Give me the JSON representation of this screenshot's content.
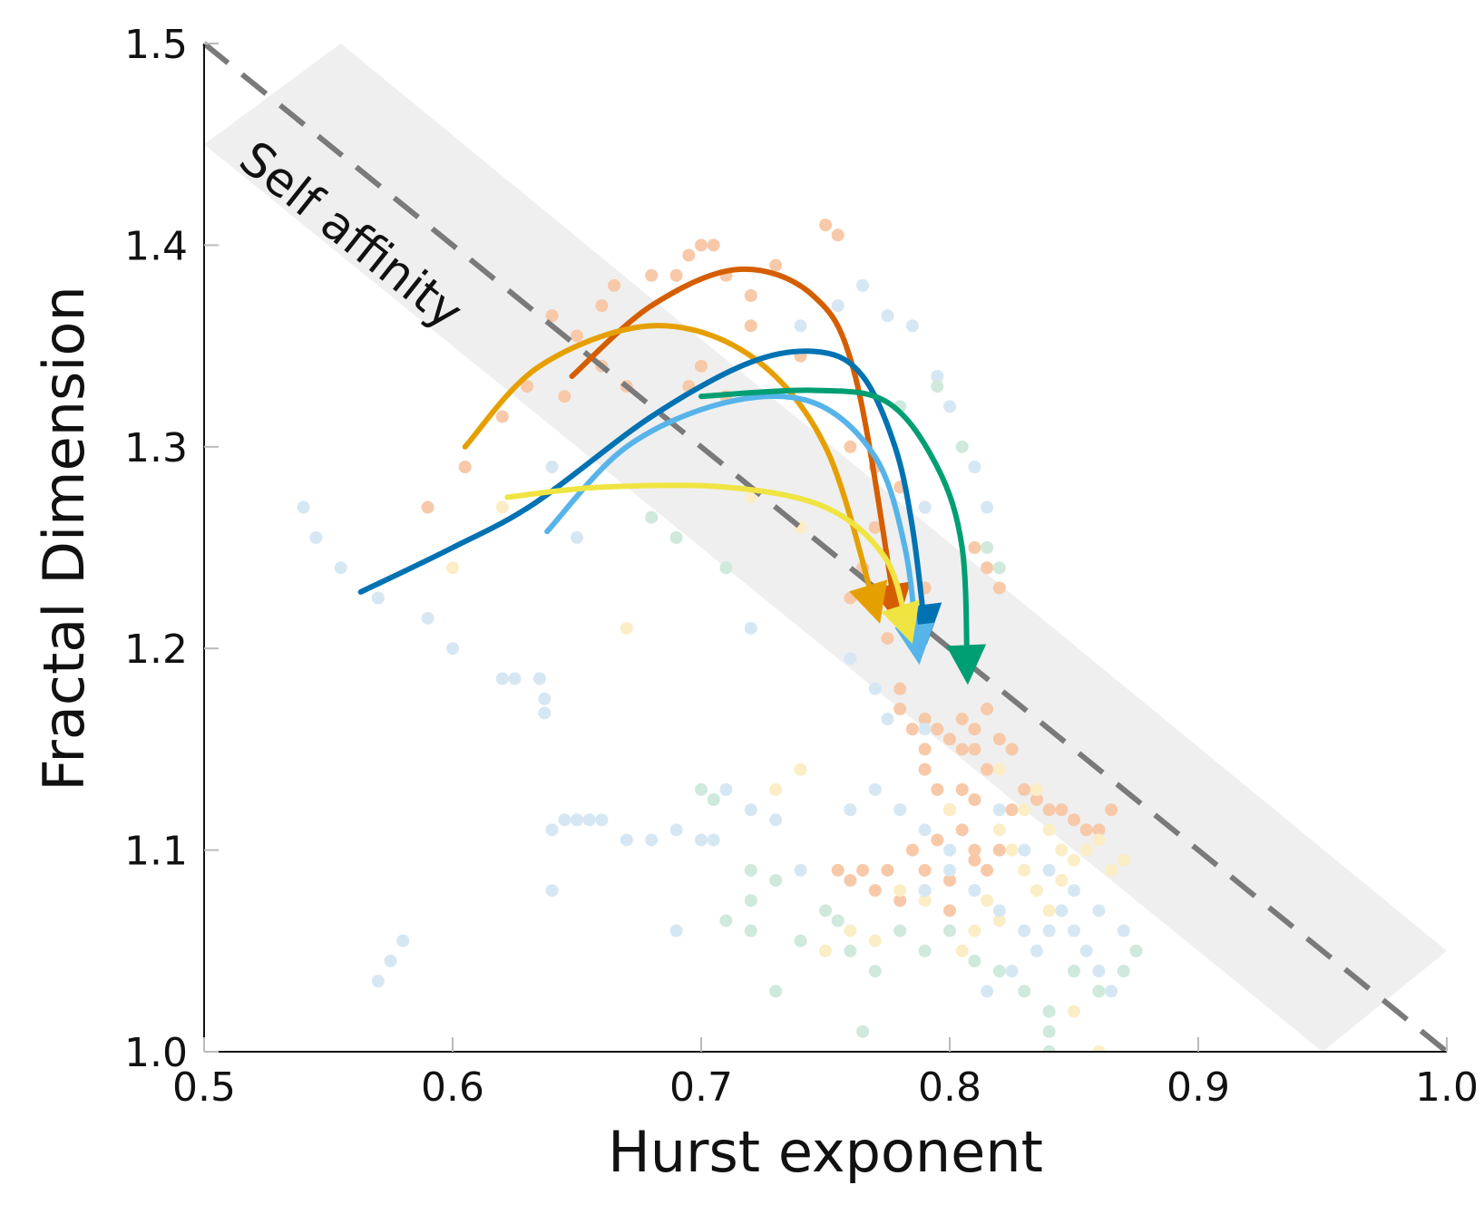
{
  "chart_data": {
    "type": "scatter",
    "title": "",
    "xlabel": "Hurst exponent",
    "ylabel": "Fractal Dimension",
    "xlim": [
      0.5,
      1.0
    ],
    "ylim": [
      1.0,
      1.5
    ],
    "x_ticks": [
      "0.5",
      "0.6",
      "0.7",
      "0.8",
      "0.9",
      "1.0"
    ],
    "y_ticks": [
      "1.0",
      "1.1",
      "1.2",
      "1.3",
      "1.4",
      "1.5"
    ],
    "grid": false,
    "annotation": "Self affinity",
    "reference_line": {
      "name": "Self affinity",
      "style": "dashed",
      "color": "#7a7a7a",
      "points": [
        [
          0.5,
          1.5
        ],
        [
          1.0,
          1.0
        ]
      ]
    },
    "band": {
      "color": "#efefef",
      "lower": [
        [
          0.5,
          1.45
        ],
        [
          0.95,
          1.0
        ]
      ],
      "upper": [
        [
          0.555,
          1.5
        ],
        [
          1.0,
          1.05
        ]
      ]
    },
    "scatter_series": [
      {
        "color": "#f7c9a8",
        "points": [
          [
            0.64,
            1.365
          ],
          [
            0.65,
            1.355
          ],
          [
            0.66,
            1.37
          ],
          [
            0.665,
            1.38
          ],
          [
            0.68,
            1.385
          ],
          [
            0.69,
            1.385
          ],
          [
            0.695,
            1.395
          ],
          [
            0.7,
            1.4
          ],
          [
            0.705,
            1.4
          ],
          [
            0.71,
            1.385
          ],
          [
            0.72,
            1.375
          ],
          [
            0.73,
            1.39
          ],
          [
            0.75,
            1.41
          ],
          [
            0.755,
            1.405
          ],
          [
            0.72,
            1.36
          ],
          [
            0.74,
            1.345
          ],
          [
            0.66,
            1.34
          ],
          [
            0.67,
            1.33
          ],
          [
            0.645,
            1.325
          ],
          [
            0.63,
            1.33
          ],
          [
            0.605,
            1.29
          ],
          [
            0.59,
            1.27
          ],
          [
            0.62,
            1.315
          ],
          [
            0.695,
            1.33
          ],
          [
            0.71,
            1.325
          ],
          [
            0.76,
            1.3
          ],
          [
            0.77,
            1.29
          ],
          [
            0.78,
            1.28
          ],
          [
            0.77,
            1.26
          ],
          [
            0.765,
            1.24
          ],
          [
            0.76,
            1.225
          ],
          [
            0.775,
            1.205
          ],
          [
            0.79,
            1.27
          ],
          [
            0.79,
            1.23
          ],
          [
            0.81,
            1.25
          ],
          [
            0.815,
            1.24
          ],
          [
            0.82,
            1.23
          ],
          [
            0.7,
            1.34
          ],
          [
            0.78,
            1.18
          ],
          [
            0.79,
            1.165
          ],
          [
            0.795,
            1.16
          ],
          [
            0.8,
            1.155
          ],
          [
            0.805,
            1.15
          ],
          [
            0.81,
            1.15
          ],
          [
            0.815,
            1.14
          ],
          [
            0.79,
            1.14
          ],
          [
            0.795,
            1.13
          ],
          [
            0.8,
            1.12
          ],
          [
            0.805,
            1.11
          ],
          [
            0.81,
            1.1
          ],
          [
            0.815,
            1.09
          ],
          [
            0.82,
            1.1
          ],
          [
            0.825,
            1.12
          ],
          [
            0.83,
            1.13
          ],
          [
            0.835,
            1.125
          ],
          [
            0.84,
            1.12
          ],
          [
            0.845,
            1.12
          ],
          [
            0.85,
            1.115
          ],
          [
            0.855,
            1.11
          ],
          [
            0.86,
            1.11
          ],
          [
            0.865,
            1.12
          ],
          [
            0.795,
            1.105
          ],
          [
            0.785,
            1.1
          ],
          [
            0.775,
            1.09
          ],
          [
            0.765,
            1.09
          ],
          [
            0.76,
            1.085
          ],
          [
            0.755,
            1.09
          ],
          [
            0.77,
            1.08
          ],
          [
            0.78,
            1.075
          ],
          [
            0.79,
            1.08
          ],
          [
            0.8,
            1.085
          ],
          [
            0.81,
            1.095
          ],
          [
            0.79,
            1.09
          ],
          [
            0.8,
            1.07
          ],
          [
            0.805,
            1.165
          ],
          [
            0.81,
            1.16
          ],
          [
            0.815,
            1.17
          ],
          [
            0.82,
            1.155
          ],
          [
            0.825,
            1.15
          ],
          [
            0.79,
            1.15
          ],
          [
            0.785,
            1.16
          ],
          [
            0.78,
            1.17
          ],
          [
            0.805,
            1.13
          ],
          [
            0.81,
            1.125
          ]
        ]
      },
      {
        "color": "#fbeec6",
        "points": [
          [
            0.62,
            1.27
          ],
          [
            0.6,
            1.24
          ],
          [
            0.67,
            1.21
          ],
          [
            0.72,
            1.275
          ],
          [
            0.74,
            1.26
          ],
          [
            0.78,
            1.22
          ],
          [
            0.79,
            1.21
          ],
          [
            0.82,
            1.11
          ],
          [
            0.825,
            1.1
          ],
          [
            0.83,
            1.09
          ],
          [
            0.835,
            1.08
          ],
          [
            0.84,
            1.07
          ],
          [
            0.845,
            1.085
          ],
          [
            0.85,
            1.095
          ],
          [
            0.855,
            1.1
          ],
          [
            0.86,
            1.105
          ],
          [
            0.865,
            1.09
          ],
          [
            0.87,
            1.095
          ],
          [
            0.81,
            1.06
          ],
          [
            0.805,
            1.05
          ],
          [
            0.815,
            1.075
          ],
          [
            0.82,
            1.065
          ],
          [
            0.83,
            1.12
          ],
          [
            0.835,
            1.13
          ],
          [
            0.84,
            1.11
          ],
          [
            0.845,
            1.1
          ],
          [
            0.75,
            1.05
          ],
          [
            0.76,
            1.06
          ],
          [
            0.77,
            1.055
          ],
          [
            0.74,
            1.14
          ],
          [
            0.73,
            1.13
          ],
          [
            0.78,
            1.08
          ],
          [
            0.79,
            1.075
          ],
          [
            0.84,
            1.0
          ],
          [
            0.85,
            1.02
          ],
          [
            0.86,
            1.0
          ],
          [
            0.8,
            1.12
          ],
          [
            0.82,
            1.14
          ]
        ]
      },
      {
        "color": "#d6e7f4",
        "points": [
          [
            0.54,
            1.27
          ],
          [
            0.545,
            1.255
          ],
          [
            0.555,
            1.24
          ],
          [
            0.57,
            1.225
          ],
          [
            0.59,
            1.215
          ],
          [
            0.6,
            1.2
          ],
          [
            0.62,
            1.185
          ],
          [
            0.625,
            1.185
          ],
          [
            0.635,
            1.185
          ],
          [
            0.637,
            1.175
          ],
          [
            0.637,
            1.168
          ],
          [
            0.64,
            1.29
          ],
          [
            0.65,
            1.255
          ],
          [
            0.74,
            1.36
          ],
          [
            0.755,
            1.37
          ],
          [
            0.765,
            1.38
          ],
          [
            0.775,
            1.365
          ],
          [
            0.785,
            1.36
          ],
          [
            0.795,
            1.335
          ],
          [
            0.8,
            1.32
          ],
          [
            0.81,
            1.29
          ],
          [
            0.815,
            1.27
          ],
          [
            0.79,
            1.27
          ],
          [
            0.72,
            1.21
          ],
          [
            0.76,
            1.195
          ],
          [
            0.77,
            1.18
          ],
          [
            0.775,
            1.165
          ],
          [
            0.79,
            1.16
          ],
          [
            0.64,
            1.11
          ],
          [
            0.645,
            1.115
          ],
          [
            0.65,
            1.115
          ],
          [
            0.655,
            1.115
          ],
          [
            0.66,
            1.115
          ],
          [
            0.67,
            1.105
          ],
          [
            0.68,
            1.105
          ],
          [
            0.69,
            1.11
          ],
          [
            0.7,
            1.105
          ],
          [
            0.705,
            1.105
          ],
          [
            0.71,
            1.13
          ],
          [
            0.72,
            1.12
          ],
          [
            0.73,
            1.115
          ],
          [
            0.74,
            1.09
          ],
          [
            0.76,
            1.12
          ],
          [
            0.77,
            1.13
          ],
          [
            0.78,
            1.12
          ],
          [
            0.79,
            1.11
          ],
          [
            0.8,
            1.1
          ],
          [
            0.81,
            1.08
          ],
          [
            0.82,
            1.07
          ],
          [
            0.83,
            1.06
          ],
          [
            0.84,
            1.06
          ],
          [
            0.845,
            1.07
          ],
          [
            0.85,
            1.06
          ],
          [
            0.855,
            1.05
          ],
          [
            0.86,
            1.04
          ],
          [
            0.865,
            1.03
          ],
          [
            0.835,
            1.05
          ],
          [
            0.825,
            1.04
          ],
          [
            0.815,
            1.03
          ],
          [
            0.64,
            1.08
          ],
          [
            0.69,
            1.06
          ],
          [
            0.57,
            1.035
          ],
          [
            0.575,
            1.045
          ],
          [
            0.58,
            1.055
          ],
          [
            0.82,
            1.12
          ],
          [
            0.83,
            1.1
          ],
          [
            0.84,
            1.09
          ],
          [
            0.85,
            1.08
          ],
          [
            0.86,
            1.07
          ],
          [
            0.87,
            1.06
          ],
          [
            0.8,
            1.09
          ],
          [
            0.79,
            1.08
          ]
        ]
      },
      {
        "color": "#cfe9dc",
        "points": [
          [
            0.68,
            1.265
          ],
          [
            0.69,
            1.255
          ],
          [
            0.71,
            1.24
          ],
          [
            0.78,
            1.32
          ],
          [
            0.795,
            1.33
          ],
          [
            0.805,
            1.3
          ],
          [
            0.815,
            1.25
          ],
          [
            0.82,
            1.24
          ],
          [
            0.7,
            1.13
          ],
          [
            0.705,
            1.125
          ],
          [
            0.72,
            1.09
          ],
          [
            0.73,
            1.085
          ],
          [
            0.75,
            1.07
          ],
          [
            0.755,
            1.065
          ],
          [
            0.76,
            1.05
          ],
          [
            0.77,
            1.04
          ],
          [
            0.78,
            1.06
          ],
          [
            0.79,
            1.05
          ],
          [
            0.8,
            1.06
          ],
          [
            0.81,
            1.045
          ],
          [
            0.82,
            1.04
          ],
          [
            0.83,
            1.03
          ],
          [
            0.84,
            1.02
          ],
          [
            0.84,
            1.01
          ],
          [
            0.84,
            1.0
          ],
          [
            0.85,
            1.04
          ],
          [
            0.86,
            1.03
          ],
          [
            0.87,
            1.04
          ],
          [
            0.875,
            1.05
          ],
          [
            0.73,
            1.03
          ],
          [
            0.765,
            1.01
          ],
          [
            0.72,
            1.06
          ],
          [
            0.74,
            1.055
          ],
          [
            0.71,
            1.065
          ],
          [
            0.72,
            1.075
          ]
        ]
      }
    ],
    "series": [
      {
        "color": "#d55e00",
        "points": [
          [
            0.648,
            1.335
          ],
          [
            0.68,
            1.37
          ],
          [
            0.715,
            1.388
          ],
          [
            0.745,
            1.375
          ],
          [
            0.762,
            1.335
          ],
          [
            0.778,
            1.22
          ]
        ]
      },
      {
        "color": "#e69f00",
        "points": [
          [
            0.605,
            1.3
          ],
          [
            0.635,
            1.34
          ],
          [
            0.68,
            1.36
          ],
          [
            0.72,
            1.345
          ],
          [
            0.75,
            1.3
          ],
          [
            0.77,
            1.22
          ]
        ]
      },
      {
        "color": "#0072b2",
        "points": [
          [
            0.563,
            1.228
          ],
          [
            0.6,
            1.25
          ],
          [
            0.633,
            1.272
          ],
          [
            0.68,
            1.315
          ],
          [
            0.72,
            1.342
          ],
          [
            0.748,
            1.347
          ],
          [
            0.765,
            1.335
          ],
          [
            0.778,
            1.3
          ],
          [
            0.785,
            1.26
          ],
          [
            0.79,
            1.21
          ]
        ]
      },
      {
        "color": "#56b4e9",
        "points": [
          [
            0.638,
            1.258
          ],
          [
            0.67,
            1.3
          ],
          [
            0.71,
            1.322
          ],
          [
            0.745,
            1.322
          ],
          [
            0.77,
            1.295
          ],
          [
            0.782,
            1.25
          ],
          [
            0.787,
            1.2
          ]
        ]
      },
      {
        "color": "#f0e442",
        "points": [
          [
            0.622,
            1.275
          ],
          [
            0.66,
            1.28
          ],
          [
            0.71,
            1.28
          ],
          [
            0.75,
            1.27
          ],
          [
            0.774,
            1.245
          ],
          [
            0.783,
            1.21
          ]
        ]
      },
      {
        "color": "#009e73",
        "points": [
          [
            0.7,
            1.325
          ],
          [
            0.745,
            1.328
          ],
          [
            0.775,
            1.322
          ],
          [
            0.795,
            1.29
          ],
          [
            0.805,
            1.25
          ],
          [
            0.807,
            1.19
          ]
        ]
      }
    ]
  }
}
